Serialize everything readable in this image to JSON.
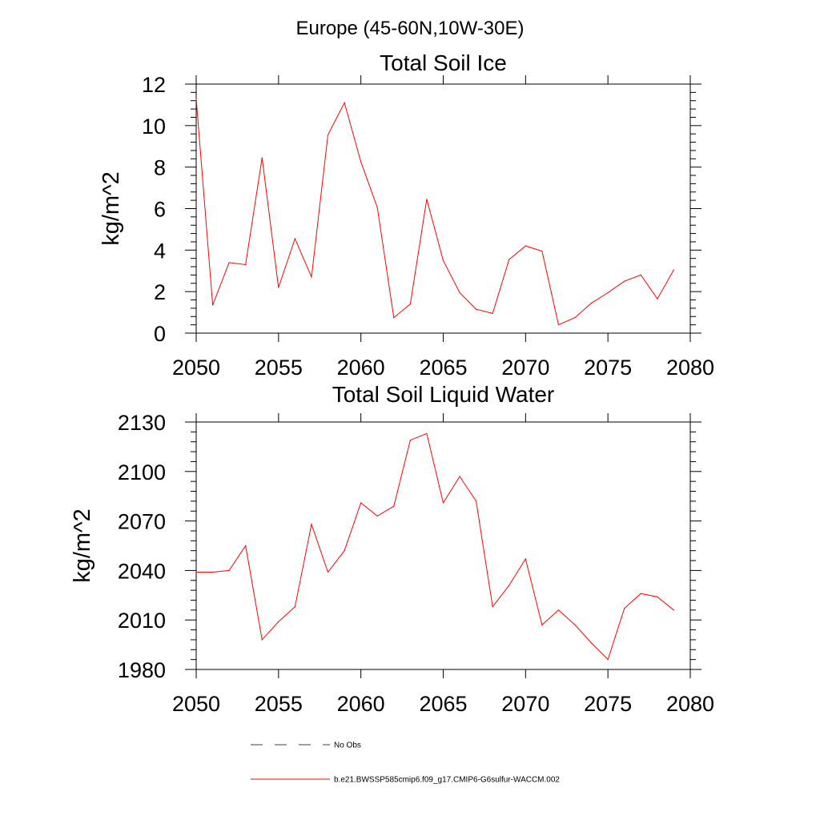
{
  "super_title": "Europe (45-60N,10W-30E)",
  "chart_data": [
    {
      "type": "line",
      "title": "Total Soil Ice",
      "ylabel": "kg/m^2",
      "xlabel": "",
      "xlim": [
        2050,
        2080
      ],
      "ylim": [
        0,
        12
      ],
      "x_ticks": [
        2050,
        2055,
        2060,
        2065,
        2070,
        2075,
        2080
      ],
      "y_ticks": [
        0,
        2,
        4,
        6,
        8,
        10,
        12
      ],
      "grid": false,
      "series": [
        {
          "name": "b.e21.BWSSP585cmip6.f09_g17.CMIP6-G6sulfur-WACCM.002",
          "color": "#ff0000",
          "x": [
            2050,
            2051,
            2052,
            2053,
            2054,
            2055,
            2056,
            2057,
            2058,
            2059,
            2060,
            2061,
            2062,
            2063,
            2064,
            2065,
            2066,
            2067,
            2068,
            2069,
            2070,
            2071,
            2072,
            2073,
            2074,
            2075,
            2076,
            2077,
            2078,
            2079
          ],
          "values": [
            11.3,
            1.35,
            3.4,
            3.3,
            8.45,
            2.2,
            4.55,
            2.7,
            9.55,
            11.1,
            8.25,
            6.05,
            0.75,
            1.4,
            6.45,
            3.5,
            1.95,
            1.15,
            0.95,
            3.55,
            4.2,
            3.95,
            0.4,
            0.75,
            1.45,
            1.95,
            2.5,
            2.8,
            1.65,
            3.05
          ]
        }
      ]
    },
    {
      "type": "line",
      "title": "Total Soil Liquid Water",
      "ylabel": "kg/m^2",
      "xlabel": "",
      "xlim": [
        2050,
        2080
      ],
      "ylim": [
        1980,
        2130
      ],
      "x_ticks": [
        2050,
        2055,
        2060,
        2065,
        2070,
        2075,
        2080
      ],
      "y_ticks": [
        1980,
        2010,
        2040,
        2070,
        2100,
        2130
      ],
      "grid": false,
      "series": [
        {
          "name": "b.e21.BWSSP585cmip6.f09_g17.CMIP6-G6sulfur-WACCM.002",
          "color": "#ff0000",
          "x": [
            2050,
            2051,
            2052,
            2053,
            2054,
            2055,
            2056,
            2057,
            2058,
            2059,
            2060,
            2061,
            2062,
            2063,
            2064,
            2065,
            2066,
            2067,
            2068,
            2069,
            2070,
            2071,
            2072,
            2073,
            2074,
            2075,
            2076,
            2077,
            2078,
            2079
          ],
          "values": [
            2039,
            2039,
            2040,
            2055,
            1998,
            2009,
            2018,
            2068,
            2039,
            2052,
            2081,
            2073,
            2079,
            2119,
            2123,
            2081,
            2097,
            2082,
            2018,
            2031,
            2047,
            2007,
            2016,
            2007,
            1996,
            1986,
            2017,
            2026,
            2024,
            2016
          ]
        }
      ]
    }
  ],
  "legend": {
    "placement": "bottom-center",
    "items": [
      {
        "label": "No Obs",
        "color": "#3a3a7a",
        "style": "dashed"
      },
      {
        "label": "b.e21.BWSSP585cmip6.f09_g17.CMIP6-G6sulfur-WACCM.002",
        "color": "#ff0000",
        "style": "solid"
      }
    ]
  }
}
